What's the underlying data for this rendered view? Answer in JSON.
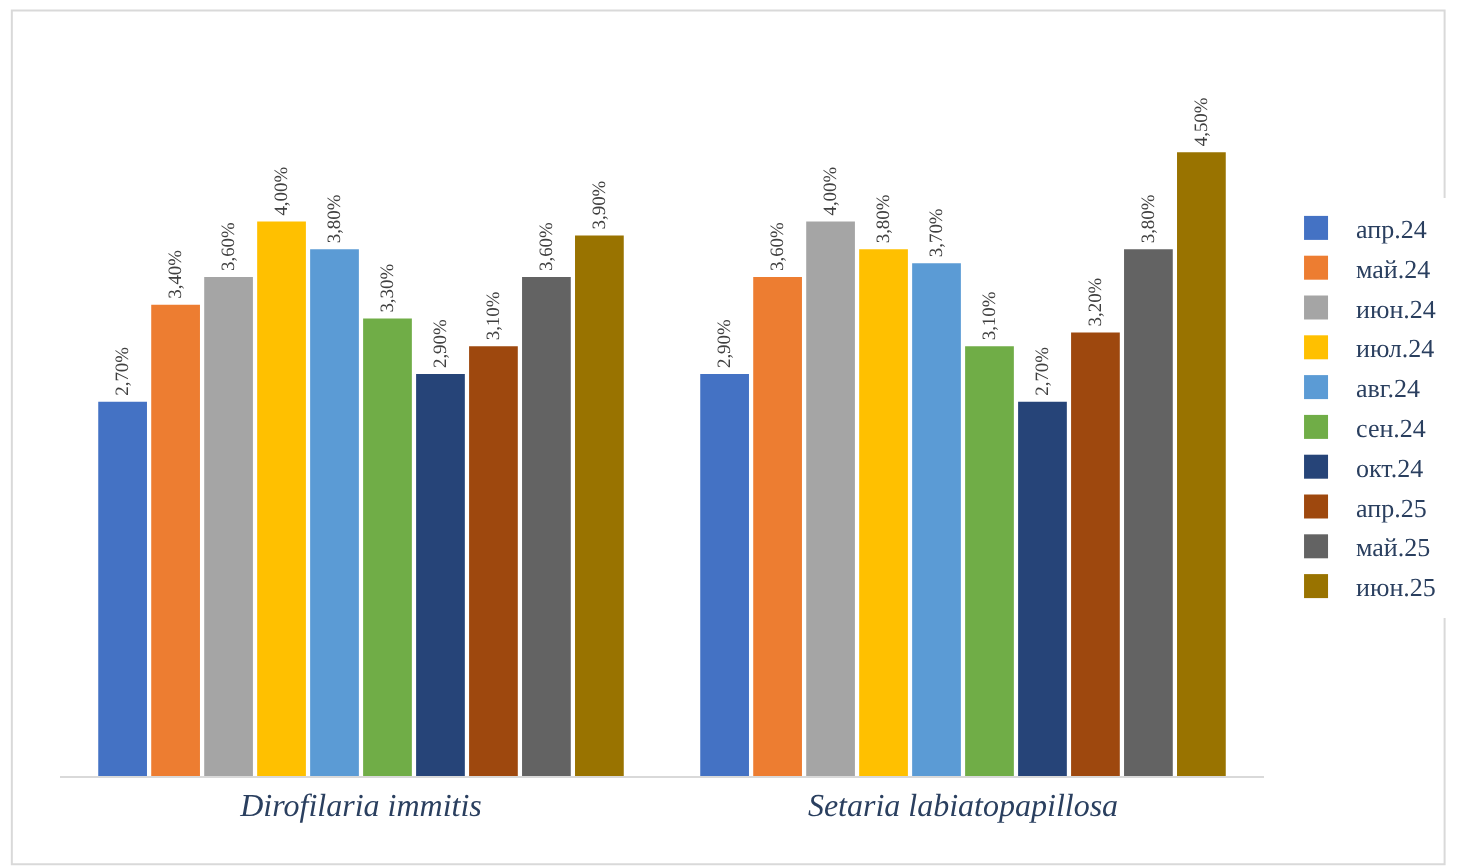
{
  "chart_data": {
    "type": "bar",
    "categories": [
      "Dirofilaria immitis",
      "Setaria labiatopapillosa"
    ],
    "legend": "right",
    "tick_labels": "x",
    "series": [
      {
        "name": "апр.24",
        "color": "#4472c4",
        "values": [
          2.7,
          2.9
        ],
        "value_labels": [
          "2,70%",
          "2,90%"
        ]
      },
      {
        "name": "май.24",
        "color": "#ed7d31",
        "values": [
          3.4,
          3.6
        ],
        "value_labels": [
          "3,40%",
          "3,60%"
        ]
      },
      {
        "name": "июн.24",
        "color": "#a5a5a5",
        "values": [
          3.6,
          4.0
        ],
        "value_labels": [
          "3,60%",
          "4,00%"
        ]
      },
      {
        "name": "июл.24",
        "color": "#ffc000",
        "values": [
          4.0,
          3.8
        ],
        "value_labels": [
          "4,00%",
          "3,80%"
        ]
      },
      {
        "name": "авг.24",
        "color": "#5b9bd5",
        "values": [
          3.8,
          3.7
        ],
        "value_labels": [
          "3,80%",
          "3,70%"
        ]
      },
      {
        "name": "сен.24",
        "color": "#70ad47",
        "values": [
          3.3,
          3.1
        ],
        "value_labels": [
          "3,30%",
          "3,10%"
        ]
      },
      {
        "name": "окт.24",
        "color": "#264478",
        "values": [
          2.9,
          2.7
        ],
        "value_labels": [
          "2,90%",
          "2,70%"
        ]
      },
      {
        "name": "апр.25",
        "color": "#9e480e",
        "values": [
          3.1,
          3.2
        ],
        "value_labels": [
          "3,10%",
          "3,20%"
        ]
      },
      {
        "name": "май.25",
        "color": "#636363",
        "values": [
          3.6,
          3.8
        ],
        "value_labels": [
          "3,60%",
          "3,80%"
        ]
      },
      {
        "name": "июн.25",
        "color": "#997300",
        "values": [
          3.9,
          4.5
        ],
        "value_labels": [
          "3,90%",
          "4,50%"
        ]
      }
    ]
  }
}
